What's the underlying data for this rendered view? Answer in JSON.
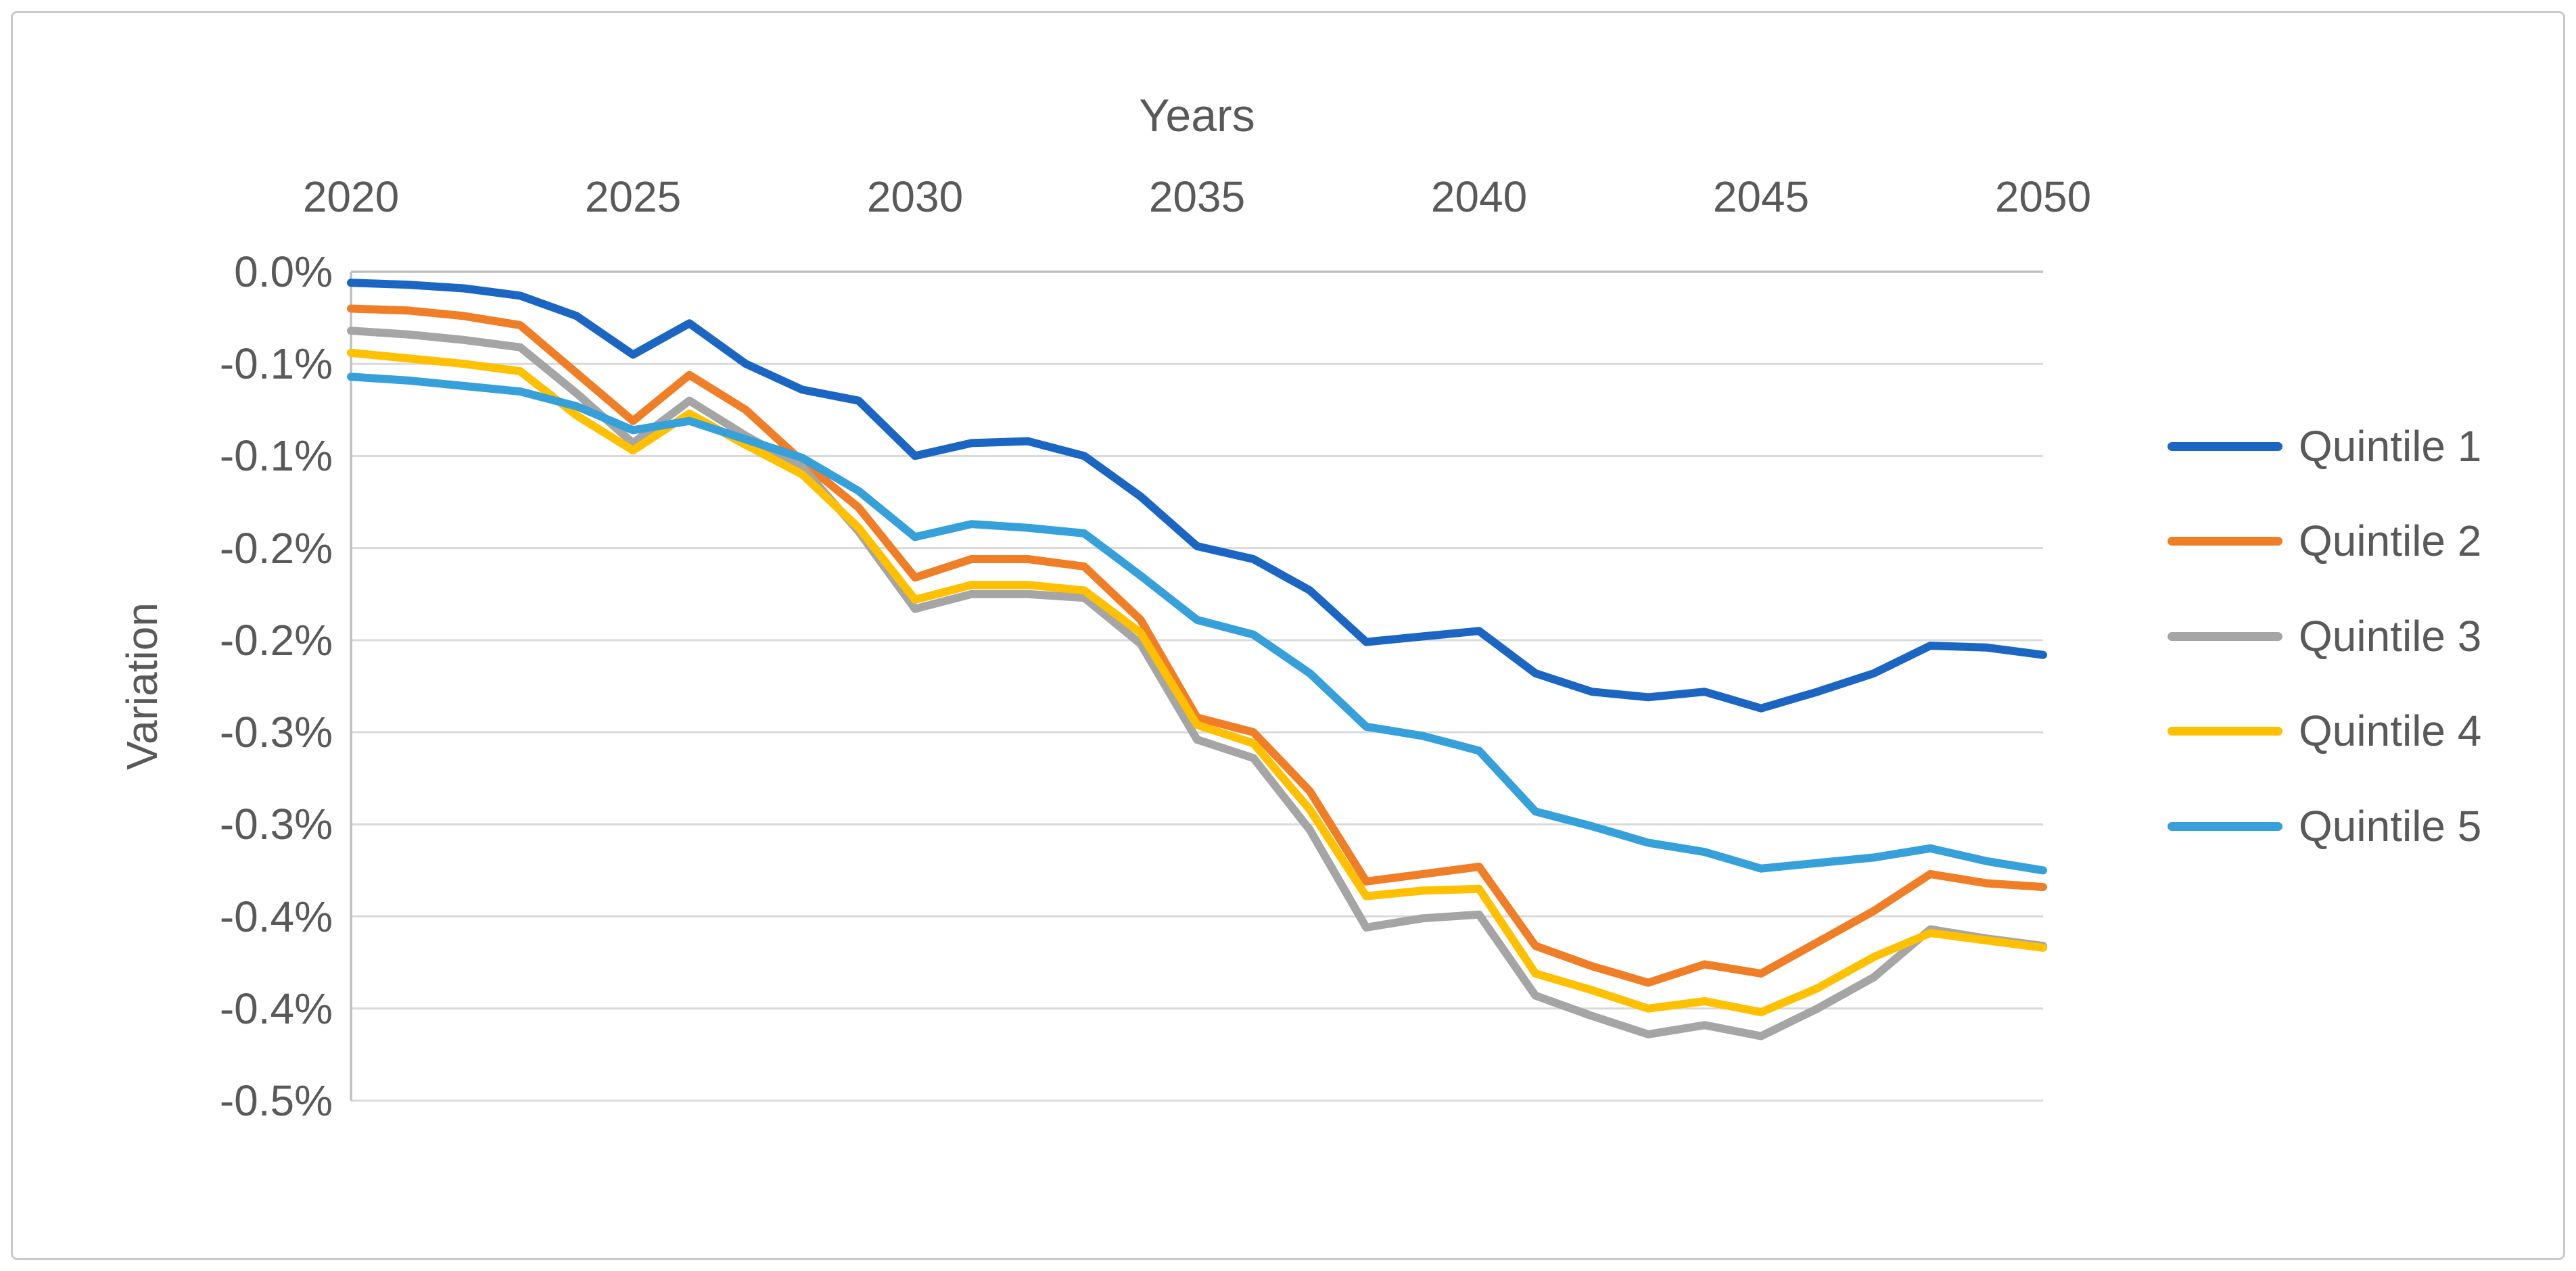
{
  "figure": {
    "background": "#FFFFFF",
    "border_color": "#C9C9C9"
  },
  "chart_data": {
    "type": "line",
    "title": "Years",
    "ylabel": "Variation",
    "x_title_position": "top",
    "legend_position": "right",
    "grid": "horizontal",
    "unit": "%",
    "x": [
      2020,
      2021,
      2022,
      2023,
      2024,
      2025,
      2026,
      2027,
      2028,
      2029,
      2030,
      2031,
      2032,
      2033,
      2034,
      2035,
      2036,
      2037,
      2038,
      2039,
      2040,
      2041,
      2042,
      2043,
      2044,
      2045,
      2046,
      2047,
      2048,
      2049,
      2050
    ],
    "x_ticks": [
      2020,
      2025,
      2030,
      2035,
      2040,
      2045,
      2050
    ],
    "ylim": [
      -0.45,
      0
    ],
    "y_tick_values": [
      0,
      -0.05,
      -0.1,
      -0.15,
      -0.2,
      -0.25,
      -0.3,
      -0.35,
      -0.4,
      -0.45
    ],
    "y_tick_labels": [
      "0.0%",
      "-0.1%",
      "-0.1%",
      "-0.2%",
      "-0.2%",
      "-0.3%",
      "-0.3%",
      "-0.4%",
      "-0.4%",
      "-0.5%"
    ],
    "series": [
      {
        "name": "Quintile 1",
        "color": "#1A66C2",
        "values": [
          -0.006,
          -0.007,
          -0.009,
          -0.013,
          -0.024,
          -0.045,
          -0.028,
          -0.05,
          -0.064,
          -0.07,
          -0.1,
          -0.093,
          -0.092,
          -0.1,
          -0.122,
          -0.149,
          -0.156,
          -0.173,
          -0.201,
          -0.198,
          -0.195,
          -0.218,
          -0.228,
          -0.231,
          -0.228,
          -0.237,
          -0.228,
          -0.218,
          -0.203,
          -0.204,
          -0.208
        ]
      },
      {
        "name": "Quintile 2",
        "color": "#F07E26",
        "values": [
          -0.02,
          -0.021,
          -0.024,
          -0.029,
          -0.055,
          -0.081,
          -0.056,
          -0.075,
          -0.103,
          -0.128,
          -0.166,
          -0.156,
          -0.156,
          -0.16,
          -0.189,
          -0.242,
          -0.25,
          -0.282,
          -0.331,
          -0.327,
          -0.323,
          -0.366,
          -0.377,
          -0.386,
          -0.376,
          -0.381,
          -0.364,
          -0.347,
          -0.327,
          -0.332,
          -0.334
        ]
      },
      {
        "name": "Quintile 3",
        "color": "#A5A5A5",
        "values": [
          -0.032,
          -0.034,
          -0.037,
          -0.041,
          -0.066,
          -0.093,
          -0.07,
          -0.089,
          -0.106,
          -0.141,
          -0.183,
          -0.175,
          -0.175,
          -0.177,
          -0.202,
          -0.254,
          -0.264,
          -0.303,
          -0.356,
          -0.351,
          -0.349,
          -0.393,
          -0.404,
          -0.414,
          -0.409,
          -0.415,
          -0.4,
          -0.383,
          -0.357,
          -0.362,
          -0.366
        ]
      },
      {
        "name": "Quintile 4",
        "color": "#FFC000",
        "values": [
          -0.044,
          -0.047,
          -0.05,
          -0.054,
          -0.078,
          -0.097,
          -0.077,
          -0.094,
          -0.11,
          -0.139,
          -0.178,
          -0.17,
          -0.17,
          -0.173,
          -0.196,
          -0.246,
          -0.256,
          -0.292,
          -0.339,
          -0.336,
          -0.335,
          -0.381,
          -0.39,
          -0.4,
          -0.396,
          -0.402,
          -0.389,
          -0.372,
          -0.359,
          -0.363,
          -0.367
        ]
      },
      {
        "name": "Quintile 5",
        "color": "#35A0DA",
        "values": [
          -0.057,
          -0.059,
          -0.062,
          -0.065,
          -0.073,
          -0.086,
          -0.081,
          -0.091,
          -0.101,
          -0.119,
          -0.144,
          -0.137,
          -0.139,
          -0.142,
          -0.165,
          -0.189,
          -0.197,
          -0.218,
          -0.247,
          -0.252,
          -0.26,
          -0.293,
          -0.301,
          -0.31,
          -0.315,
          -0.324,
          -0.321,
          -0.318,
          -0.313,
          -0.32,
          -0.325
        ]
      }
    ]
  }
}
